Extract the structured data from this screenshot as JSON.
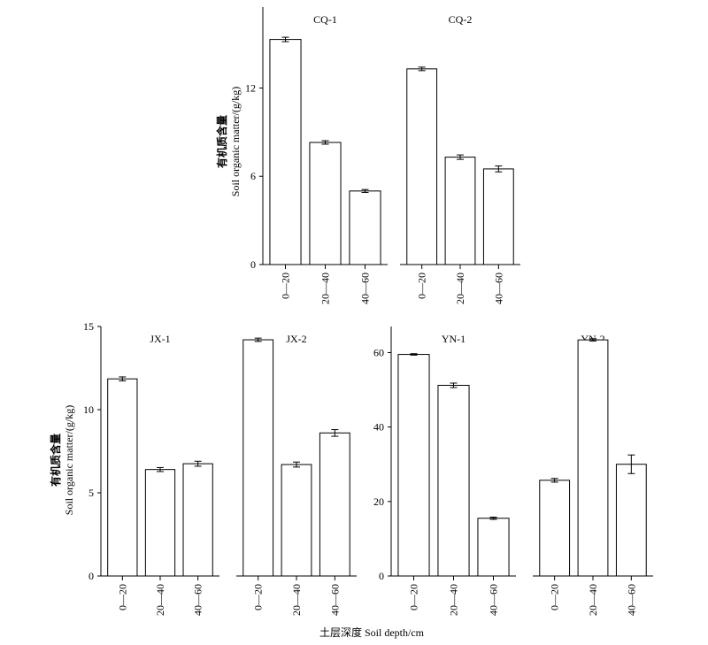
{
  "figure": {
    "xlabel": "土层深度 Soil depth/cm",
    "ylabel_cn": "有机质含量",
    "ylabel_en": "Soil organic matter/(g/kg)"
  },
  "chart_data": [
    {
      "type": "bar",
      "title": "CQ-1",
      "categories": [
        "0—20",
        "20—40",
        "40—60"
      ],
      "values": [
        15.3,
        8.3,
        5.0
      ],
      "errors": [
        0.15,
        0.12,
        0.1
      ],
      "ylim": [
        0,
        17.5
      ],
      "yticks": [
        0,
        6,
        12
      ],
      "ylabel": "有机质含量 Soil organic matter/(g/kg)"
    },
    {
      "type": "bar",
      "title": "CQ-2",
      "categories": [
        "0—20",
        "20—40",
        "40—60"
      ],
      "values": [
        13.3,
        7.3,
        6.5
      ],
      "errors": [
        0.12,
        0.15,
        0.2
      ],
      "ylim": [
        0,
        17.5
      ],
      "yticks": [],
      "ylabel": ""
    },
    {
      "type": "bar",
      "title": "JX-1",
      "categories": [
        "0—20",
        "20—40",
        "40—60"
      ],
      "values": [
        11.85,
        6.4,
        6.75
      ],
      "errors": [
        0.12,
        0.12,
        0.15
      ],
      "ylim": [
        0,
        15
      ],
      "yticks": [
        0,
        5,
        10,
        15
      ],
      "ylabel": "有机质含量 Soil organic matter/(g/kg)"
    },
    {
      "type": "bar",
      "title": "JX-2",
      "categories": [
        "0—20",
        "20—40",
        "40—60"
      ],
      "values": [
        14.2,
        6.7,
        8.6
      ],
      "errors": [
        0.1,
        0.15,
        0.2
      ],
      "ylim": [
        0,
        15
      ],
      "yticks": [],
      "ylabel": ""
    },
    {
      "type": "bar",
      "title": "YN-1",
      "categories": [
        "0—20",
        "20—40",
        "40—60"
      ],
      "values": [
        59.5,
        51.2,
        15.5
      ],
      "errors": [
        0.2,
        0.6,
        0.3
      ],
      "ylim": [
        0,
        67
      ],
      "yticks": [
        0,
        20,
        40,
        60
      ],
      "ylabel": ""
    },
    {
      "type": "bar",
      "title": "YN-2",
      "categories": [
        "0—20",
        "20—40",
        "40—60"
      ],
      "values": [
        25.7,
        63.4,
        30.0
      ],
      "errors": [
        0.5,
        0.3,
        2.5
      ],
      "ylim": [
        0,
        67
      ],
      "yticks": [],
      "ylabel": ""
    }
  ]
}
